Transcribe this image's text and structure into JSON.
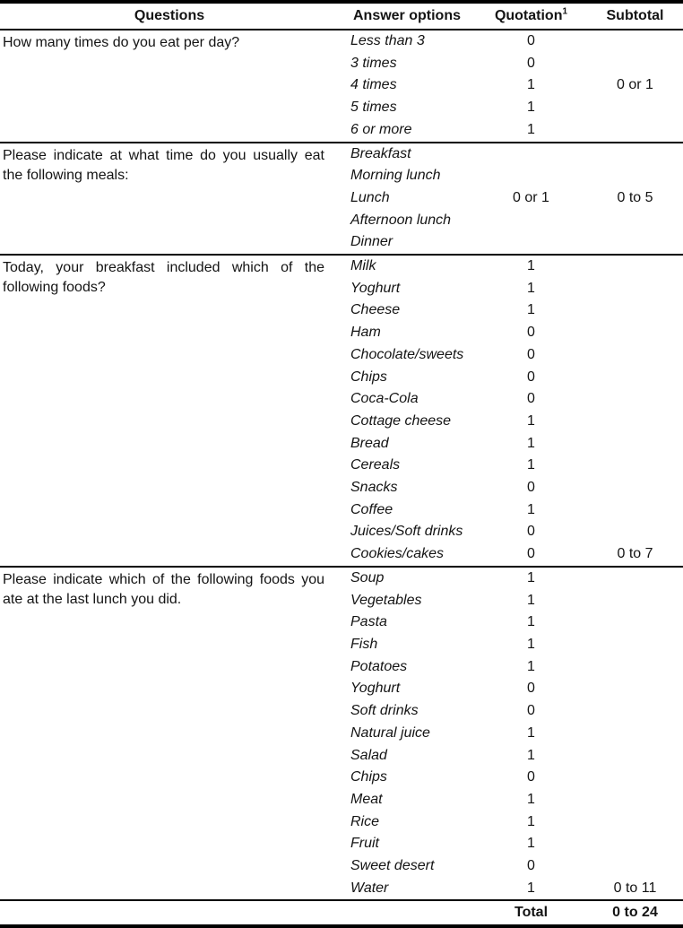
{
  "table": {
    "headers": {
      "questions": "Questions",
      "answer_options": "Answer options",
      "quotation": "Quotation",
      "quotation_superscript": "1",
      "subtotal": "Subtotal"
    },
    "sections": [
      {
        "question": "How many times do you eat per day?",
        "rows": [
          {
            "option": "Less than 3",
            "quotation": "0"
          },
          {
            "option": "3 times",
            "quotation": "0"
          },
          {
            "option": "4 times",
            "quotation": "1",
            "subtotal": "0 or 1"
          },
          {
            "option": "5 times",
            "quotation": "1"
          },
          {
            "option": "6 or more",
            "quotation": "1"
          }
        ]
      },
      {
        "question": "Please indicate at what time do you usually eat the following meals:",
        "rows": [
          {
            "option": "Breakfast"
          },
          {
            "option": "Morning lunch"
          },
          {
            "option": "Lunch",
            "quotation": "0 or 1",
            "subtotal": "0 to 5"
          },
          {
            "option": "Afternoon lunch"
          },
          {
            "option": "Dinner"
          }
        ]
      },
      {
        "question": "Today, your breakfast included which of the following foods?",
        "rows": [
          {
            "option": "Milk",
            "quotation": "1"
          },
          {
            "option": "Yoghurt",
            "quotation": "1"
          },
          {
            "option": "Cheese",
            "quotation": "1"
          },
          {
            "option": "Ham",
            "quotation": "0"
          },
          {
            "option": "Chocolate/sweets",
            "quotation": "0"
          },
          {
            "option": "Chips",
            "quotation": "0"
          },
          {
            "option": "Coca-Cola",
            "quotation": "0"
          },
          {
            "option": "Cottage cheese",
            "quotation": "1"
          },
          {
            "option": "Bread",
            "quotation": "1"
          },
          {
            "option": "Cereals",
            "quotation": "1"
          },
          {
            "option": "Snacks",
            "quotation": "0"
          },
          {
            "option": "Coffee",
            "quotation": "1"
          },
          {
            "option": "Juices/Soft drinks",
            "quotation": "0"
          },
          {
            "option": "Cookies/cakes",
            "quotation": "0",
            "subtotal": "0 to 7"
          }
        ]
      },
      {
        "question": "Please indicate which of the following foods you ate at the last lunch you did.",
        "rows": [
          {
            "option": "Soup",
            "quotation": "1"
          },
          {
            "option": "Vegetables",
            "quotation": "1"
          },
          {
            "option": "Pasta",
            "quotation": "1"
          },
          {
            "option": "Fish",
            "quotation": "1"
          },
          {
            "option": "Potatoes",
            "quotation": "1"
          },
          {
            "option": "Yoghurt",
            "quotation": "0"
          },
          {
            "option": "Soft drinks",
            "quotation": "0"
          },
          {
            "option": "Natural juice",
            "quotation": "1"
          },
          {
            "option": "Salad",
            "quotation": "1"
          },
          {
            "option": "Chips",
            "quotation": "0"
          },
          {
            "option": "Meat",
            "quotation": "1"
          },
          {
            "option": "Rice",
            "quotation": "1"
          },
          {
            "option": "Fruit",
            "quotation": "1"
          },
          {
            "option": "Sweet desert",
            "quotation": "0"
          },
          {
            "option": "Water",
            "quotation": "1",
            "subtotal": "0 to 11"
          }
        ]
      }
    ],
    "total_row": {
      "label": "Total",
      "value": "0 to 24"
    }
  }
}
